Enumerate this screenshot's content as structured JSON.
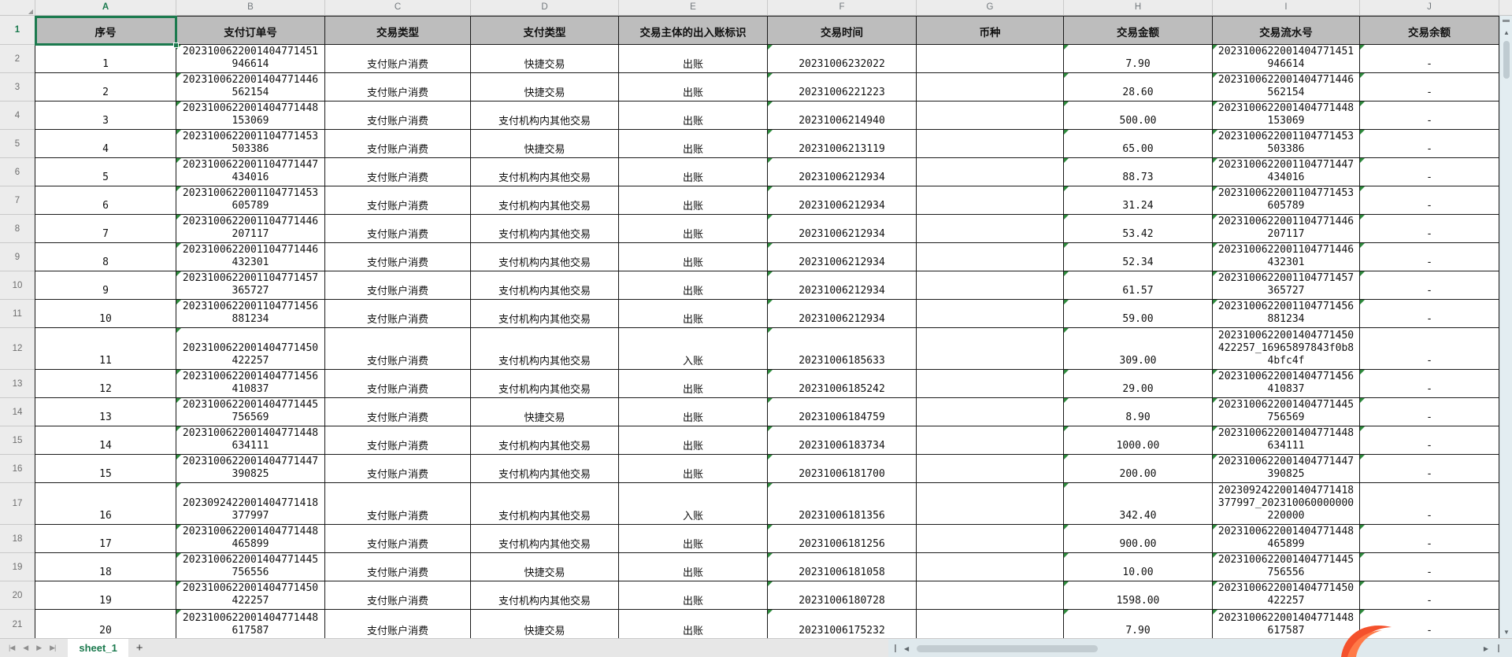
{
  "selection": {
    "cell": "A1",
    "column": "A",
    "row_number": "1"
  },
  "column_strip": {
    "letters": [
      "A",
      "B",
      "C",
      "D",
      "E",
      "F",
      "G",
      "H",
      "I",
      "J"
    ],
    "select_all_icon": "◢"
  },
  "table": {
    "headers": [
      "序号",
      "支付订单号",
      "交易类型",
      "支付类型",
      "交易主体的出入账标识",
      "交易时间",
      "币种",
      "交易金额",
      "交易流水号",
      "交易余额"
    ],
    "rows": [
      {
        "row": "2",
        "seq": "1",
        "order": "2023100622001404771451946614",
        "tx_type": "支付账户消费",
        "pay_type": "快捷交易",
        "flow": "出账",
        "time": "20231006232022",
        "currency": "",
        "amount": "7.90",
        "serial": "2023100622001404771451946614",
        "balance": "-"
      },
      {
        "row": "3",
        "seq": "2",
        "order": "2023100622001404771446562154",
        "tx_type": "支付账户消费",
        "pay_type": "快捷交易",
        "flow": "出账",
        "time": "20231006221223",
        "currency": "",
        "amount": "28.60",
        "serial": "2023100622001404771446562154",
        "balance": "-"
      },
      {
        "row": "4",
        "seq": "3",
        "order": "2023100622001404771448153069",
        "tx_type": "支付账户消费",
        "pay_type": "支付机构内其他交易",
        "flow": "出账",
        "time": "20231006214940",
        "currency": "",
        "amount": "500.00",
        "serial": "2023100622001404771448153069",
        "balance": "-"
      },
      {
        "row": "5",
        "seq": "4",
        "order": "2023100622001104771453503386",
        "tx_type": "支付账户消费",
        "pay_type": "快捷交易",
        "flow": "出账",
        "time": "20231006213119",
        "currency": "",
        "amount": "65.00",
        "serial": "2023100622001104771453503386",
        "balance": "-"
      },
      {
        "row": "6",
        "seq": "5",
        "order": "2023100622001104771447434016",
        "tx_type": "支付账户消费",
        "pay_type": "支付机构内其他交易",
        "flow": "出账",
        "time": "20231006212934",
        "currency": "",
        "amount": "88.73",
        "serial": "2023100622001104771447434016",
        "balance": "-"
      },
      {
        "row": "7",
        "seq": "6",
        "order": "2023100622001104771453605789",
        "tx_type": "支付账户消费",
        "pay_type": "支付机构内其他交易",
        "flow": "出账",
        "time": "20231006212934",
        "currency": "",
        "amount": "31.24",
        "serial": "2023100622001104771453605789",
        "balance": "-"
      },
      {
        "row": "8",
        "seq": "7",
        "order": "2023100622001104771446207117",
        "tx_type": "支付账户消费",
        "pay_type": "支付机构内其他交易",
        "flow": "出账",
        "time": "20231006212934",
        "currency": "",
        "amount": "53.42",
        "serial": "2023100622001104771446207117",
        "balance": "-"
      },
      {
        "row": "9",
        "seq": "8",
        "order": "2023100622001104771446432301",
        "tx_type": "支付账户消费",
        "pay_type": "支付机构内其他交易",
        "flow": "出账",
        "time": "20231006212934",
        "currency": "",
        "amount": "52.34",
        "serial": "2023100622001104771446432301",
        "balance": "-"
      },
      {
        "row": "10",
        "seq": "9",
        "order": "2023100622001104771457365727",
        "tx_type": "支付账户消费",
        "pay_type": "支付机构内其他交易",
        "flow": "出账",
        "time": "20231006212934",
        "currency": "",
        "amount": "61.57",
        "serial": "2023100622001104771457365727",
        "balance": "-"
      },
      {
        "row": "11",
        "seq": "10",
        "order": "2023100622001104771456881234",
        "tx_type": "支付账户消费",
        "pay_type": "支付机构内其他交易",
        "flow": "出账",
        "time": "20231006212934",
        "currency": "",
        "amount": "59.00",
        "serial": "2023100622001104771456881234",
        "balance": "-"
      },
      {
        "row": "12",
        "seq": "11",
        "order": "2023100622001404771450422257",
        "tx_type": "支付账户消费",
        "pay_type": "支付机构内其他交易",
        "flow": "入账",
        "time": "20231006185633",
        "currency": "",
        "amount": "309.00",
        "serial": "2023100622001404771450422257_16965897843f0b84bfc4f",
        "balance": "-"
      },
      {
        "row": "13",
        "seq": "12",
        "order": "2023100622001404771456410837",
        "tx_type": "支付账户消费",
        "pay_type": "支付机构内其他交易",
        "flow": "出账",
        "time": "20231006185242",
        "currency": "",
        "amount": "29.00",
        "serial": "2023100622001404771456410837",
        "balance": "-"
      },
      {
        "row": "14",
        "seq": "13",
        "order": "2023100622001404771445756569",
        "tx_type": "支付账户消费",
        "pay_type": "快捷交易",
        "flow": "出账",
        "time": "20231006184759",
        "currency": "",
        "amount": "8.90",
        "serial": "2023100622001404771445756569",
        "balance": "-"
      },
      {
        "row": "15",
        "seq": "14",
        "order": "2023100622001404771448634111",
        "tx_type": "支付账户消费",
        "pay_type": "支付机构内其他交易",
        "flow": "出账",
        "time": "20231006183734",
        "currency": "",
        "amount": "1000.00",
        "serial": "2023100622001404771448634111",
        "balance": "-"
      },
      {
        "row": "16",
        "seq": "15",
        "order": "2023100622001404771447390825",
        "tx_type": "支付账户消费",
        "pay_type": "支付机构内其他交易",
        "flow": "出账",
        "time": "20231006181700",
        "currency": "",
        "amount": "200.00",
        "serial": "2023100622001404771447390825",
        "balance": "-"
      },
      {
        "row": "17",
        "seq": "16",
        "order": "2023092422001404771418377997",
        "tx_type": "支付账户消费",
        "pay_type": "支付机构内其他交易",
        "flow": "入账",
        "time": "20231006181356",
        "currency": "",
        "amount": "342.40",
        "serial": "2023092422001404771418377997_202310060000000220000",
        "balance": "-"
      },
      {
        "row": "18",
        "seq": "17",
        "order": "2023100622001404771448465899",
        "tx_type": "支付账户消费",
        "pay_type": "支付机构内其他交易",
        "flow": "出账",
        "time": "20231006181256",
        "currency": "",
        "amount": "900.00",
        "serial": "2023100622001404771448465899",
        "balance": "-"
      },
      {
        "row": "19",
        "seq": "18",
        "order": "2023100622001404771445756556",
        "tx_type": "支付账户消费",
        "pay_type": "快捷交易",
        "flow": "出账",
        "time": "20231006181058",
        "currency": "",
        "amount": "10.00",
        "serial": "2023100622001404771445756556",
        "balance": "-"
      },
      {
        "row": "20",
        "seq": "19",
        "order": "2023100622001404771450422257",
        "tx_type": "支付账户消费",
        "pay_type": "支付机构内其他交易",
        "flow": "出账",
        "time": "20231006180728",
        "currency": "",
        "amount": "1598.00",
        "serial": "2023100622001404771450422257",
        "balance": "-"
      },
      {
        "row": "21",
        "seq": "20",
        "order": "2023100622001404771448617587",
        "tx_type": "支付账户消费",
        "pay_type": "快捷交易",
        "flow": "出账",
        "time": "20231006175232",
        "currency": "",
        "amount": "7.90",
        "serial": "2023100622001404771448617587",
        "balance": "-"
      }
    ]
  },
  "sheet_bar": {
    "tab": "sheet_1",
    "add": "+",
    "nav_first": "|◀",
    "nav_prev": "◀",
    "nav_next": "▶",
    "nav_last": "▶|"
  },
  "scrollbars": {
    "up": "▲",
    "down": "▼",
    "left": "◀",
    "right": "▶"
  },
  "colors": {
    "accent_green": "#1b7a4e",
    "indicator_green": "#2e8b3d",
    "header_fill": "#bdbdbd",
    "logo_orange": "#f4512c"
  }
}
